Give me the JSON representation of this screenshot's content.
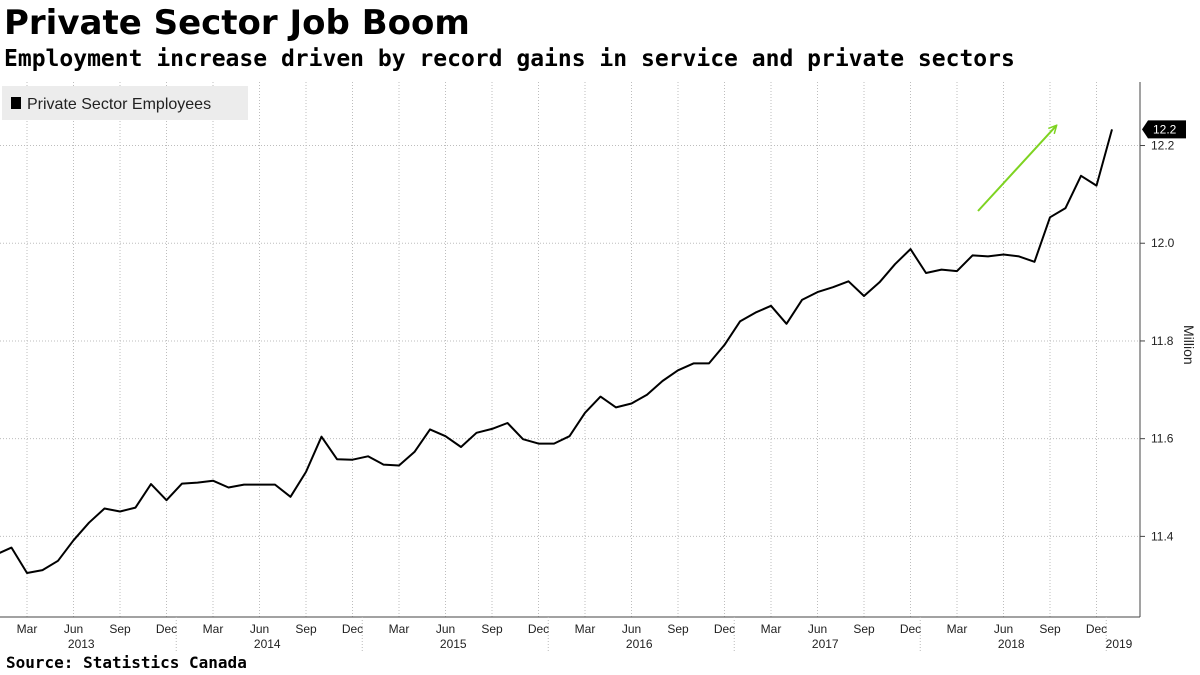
{
  "header": {
    "title": "Private Sector Job Boom",
    "subtitle": "Employment increase driven by record gains in service and private sectors"
  },
  "footer": {
    "source": "Source: Statistics Canada"
  },
  "colors": {
    "line": "#000000",
    "arrow": "#7ed321",
    "grid": "#bdbdbd",
    "legend_bg": "#ececec",
    "badge_bg": "#000000"
  },
  "chart_data": {
    "type": "line",
    "series": [
      {
        "name": "Private Sector Employees",
        "values": [
          11.363,
          11.377,
          11.325,
          11.331,
          11.35,
          11.392,
          11.428,
          11.457,
          11.451,
          11.459,
          11.507,
          11.474,
          11.508,
          11.51,
          11.514,
          11.5,
          11.506,
          11.506,
          11.506,
          11.481,
          11.532,
          11.604,
          11.558,
          11.557,
          11.564,
          11.547,
          11.545,
          11.573,
          11.619,
          11.605,
          11.583,
          11.612,
          11.62,
          11.632,
          11.599,
          11.59,
          11.59,
          11.605,
          11.653,
          11.686,
          11.664,
          11.672,
          11.69,
          11.718,
          11.74,
          11.754,
          11.754,
          11.792,
          11.84,
          11.858,
          11.872,
          11.835,
          11.884,
          11.9,
          11.91,
          11.922,
          11.892,
          11.92,
          11.957,
          11.988,
          11.939,
          11.946,
          11.943,
          11.975,
          11.973,
          11.977,
          11.973,
          11.962,
          12.053,
          12.072,
          12.138,
          12.118,
          12.233
        ]
      }
    ],
    "x_start": "2013-01",
    "x_end": "2019-01",
    "x_interval": "month",
    "x_tick_labels": [
      "Mar",
      "Jun",
      "Sep",
      "Dec",
      "Mar",
      "Jun",
      "Sep",
      "Dec",
      "Mar",
      "Jun",
      "Sep",
      "Dec",
      "Mar",
      "Jun",
      "Sep",
      "Dec",
      "Mar",
      "Jun",
      "Sep",
      "Dec",
      "Mar",
      "Jun",
      "Sep",
      "Dec"
    ],
    "x_year_labels": [
      "2013",
      "2014",
      "2015",
      "2016",
      "2017",
      "2018",
      "2019"
    ],
    "y_ticks": [
      11.4,
      11.6,
      11.8,
      12.0,
      12.2
    ],
    "y_tick_labels": [
      "11.4",
      "11.6",
      "11.8",
      "12.0",
      "12.2"
    ],
    "ylim": [
      11.235,
      12.33
    ],
    "ylabel": "Million",
    "yaxis_side": "right",
    "last_value_label": "12.2",
    "grid": true,
    "legend_position": "top-left",
    "annotation": "green up-trend arrow over 2018"
  }
}
